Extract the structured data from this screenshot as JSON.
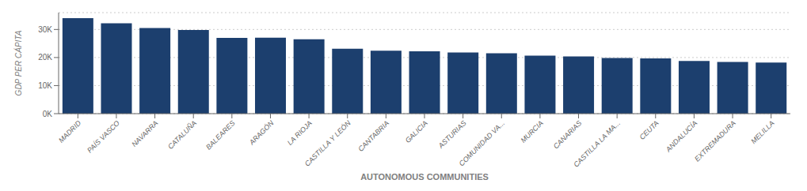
{
  "chart_data": {
    "type": "bar",
    "categories": [
      "MADRID",
      "PAÍS VASCO",
      "NAVARRA",
      "CATALUÑA",
      "BALEARES",
      "ARAGÓN",
      "LA RIOJA",
      "CASTILLA Y LEÓN",
      "CANTABRIA",
      "GALICIA",
      "ASTURIAS",
      "COMUNIDAD VA...",
      "MURCIA",
      "CANARIAS",
      "CASTILLA LA MA...",
      "CEUTA",
      "ANDALUCÍA",
      "EXTREMADURA",
      "MELILLA"
    ],
    "values": [
      34000,
      32200,
      30500,
      29800,
      27000,
      27100,
      26500,
      23100,
      22400,
      22200,
      21800,
      21500,
      20700,
      20400,
      19800,
      19700,
      18800,
      18400,
      18200
    ],
    "color": "#1c3f6e",
    "xlabel": "AUTONOMOUS COMMUNITIES",
    "ylabel": "GDP PER CÁPITA",
    "ylim": [
      0,
      36000
    ],
    "yticks": [
      {
        "value": 0,
        "label": "0K"
      },
      {
        "value": 10000,
        "label": "10K"
      },
      {
        "value": 20000,
        "label": "20K"
      },
      {
        "value": 30000,
        "label": "30K"
      }
    ],
    "grid": true
  }
}
